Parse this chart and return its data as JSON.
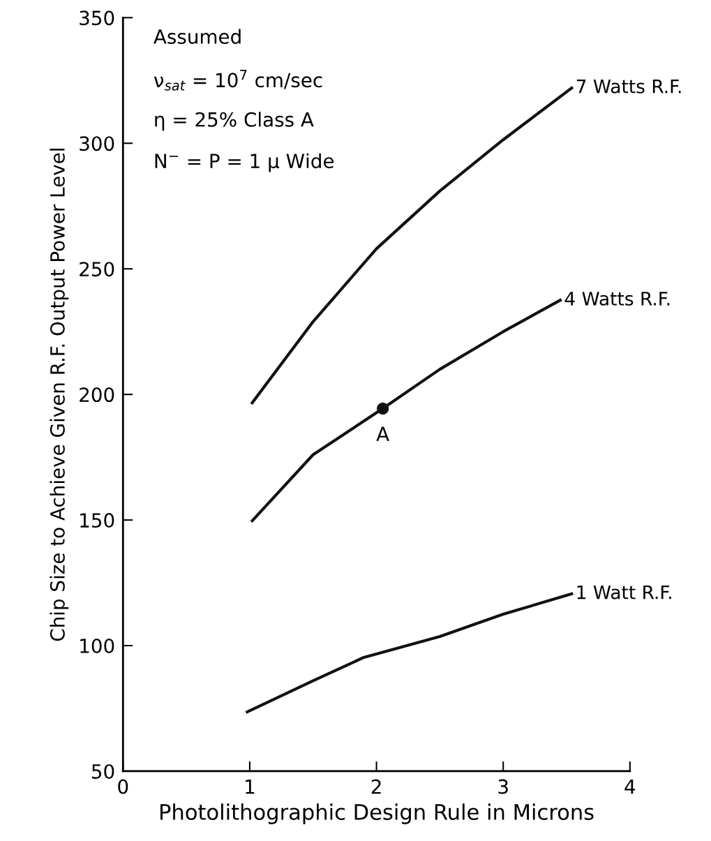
{
  "chart_data": {
    "type": "line",
    "xlabel": "Photolithographic Design Rule in Microns",
    "ylabel": "Chip Size to Achieve Given R.F. Output Power Level",
    "xlim": [
      0,
      4
    ],
    "ylim": [
      50,
      350
    ],
    "xticks": [
      0,
      1,
      2,
      3,
      4
    ],
    "yticks": [
      50,
      100,
      150,
      200,
      250,
      300,
      350
    ],
    "grid": false,
    "legend": false,
    "marker": "none",
    "line_style": "solid",
    "series": [
      {
        "name": "7 Watts R.F.",
        "color": "#111111",
        "x": [
          1.02,
          1.5,
          2,
          2.5,
          3,
          3.54
        ],
        "values": [
          196.7,
          229,
          258,
          281,
          301.4,
          322
        ]
      },
      {
        "name": "4 Watts R.F.",
        "color": "#111111",
        "x": [
          1.02,
          1.5,
          2.05,
          2.5,
          3,
          3.45
        ],
        "values": [
          149.7,
          176,
          194.4,
          210,
          225,
          237.5
        ]
      },
      {
        "name": "1 Watt R.F.",
        "color": "#111111",
        "x": [
          0.98,
          1.5,
          1.9,
          2.5,
          3,
          3.54
        ],
        "values": [
          73.6,
          86,
          95.3,
          103.6,
          112.5,
          120.6
        ]
      },
      {
        "type": "scatter",
        "color": "#111111",
        "marker": "circle",
        "x": [
          2.05
        ],
        "values": [
          194.4
        ]
      }
    ],
    "annotations": [
      "Assumed",
      "ν$_{sat}$ = 10$^{7}$ cm/sec",
      "η = 25% Class A",
      "N$^{−}$ = P = 1 μ Wide",
      {
        "text": "A",
        "x": 2.05,
        "y": 194.4
      }
    ]
  }
}
